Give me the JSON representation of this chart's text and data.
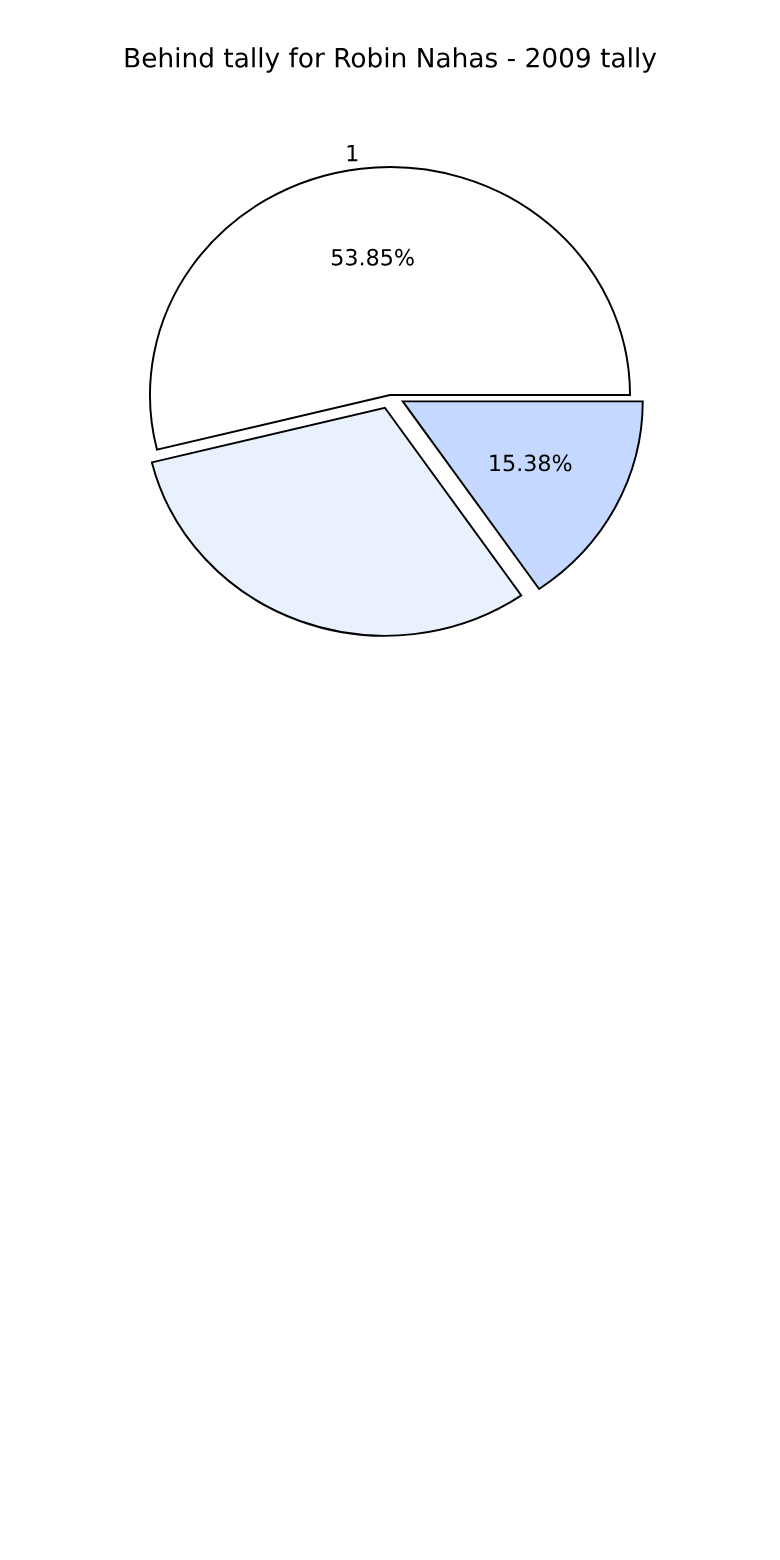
{
  "chart_data": {
    "type": "pie",
    "title": "Behind tally for Robin Nahas - 2009 tally",
    "categories": [
      "1",
      null,
      null
    ],
    "values": [
      53.85,
      30.77,
      15.38
    ],
    "colors": [
      "#ffffff",
      "#eaf1fe",
      "#c5d8ff"
    ],
    "value_labels": [
      "53.85%",
      null,
      "15.38%"
    ],
    "legend": false
  }
}
